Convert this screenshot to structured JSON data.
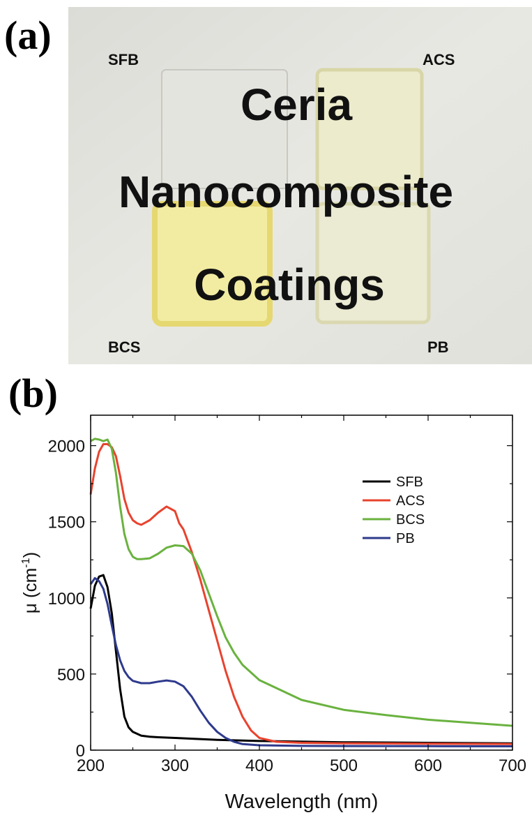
{
  "panel_a": {
    "label": "(a)",
    "sample_labels": {
      "top_left": "SFB",
      "top_right": "ACS",
      "bottom_left": "BCS",
      "bottom_right": "PB"
    },
    "background_text": [
      "Ceria",
      "Nanocomposite",
      "Coatings"
    ]
  },
  "panel_b": {
    "label": "(b)"
  },
  "chart_data": {
    "type": "line",
    "xlabel": "Wavelength (nm)",
    "ylabel": "μ (cm",
    "ylabel_sup": "-1",
    "ylabel_close": ")",
    "xlim": [
      200,
      700
    ],
    "ylim": [
      0,
      2200
    ],
    "xticks": [
      200,
      300,
      400,
      500,
      600,
      700
    ],
    "yticks": [
      0,
      500,
      1000,
      1500,
      2000
    ],
    "legend_position": "top-right",
    "series": [
      {
        "name": "SFB",
        "color": "#000000",
        "x": [
          200,
          205,
          210,
          215,
          220,
          225,
          230,
          235,
          240,
          245,
          250,
          260,
          270,
          280,
          300,
          350,
          400,
          500,
          600,
          700
        ],
        "y": [
          930,
          1080,
          1140,
          1150,
          1070,
          900,
          650,
          400,
          220,
          150,
          120,
          95,
          88,
          85,
          80,
          68,
          60,
          52,
          48,
          45
        ]
      },
      {
        "name": "ACS",
        "color": "#e8432e",
        "x": [
          200,
          205,
          210,
          215,
          220,
          225,
          230,
          235,
          240,
          245,
          250,
          255,
          260,
          270,
          280,
          290,
          300,
          305,
          310,
          320,
          330,
          340,
          350,
          360,
          370,
          380,
          390,
          400,
          420,
          450,
          500,
          600,
          700
        ],
        "y": [
          1680,
          1850,
          1960,
          2010,
          2010,
          1990,
          1930,
          1800,
          1650,
          1560,
          1510,
          1490,
          1480,
          1510,
          1560,
          1600,
          1570,
          1490,
          1450,
          1300,
          1120,
          920,
          720,
          520,
          350,
          220,
          130,
          80,
          55,
          48,
          45,
          42,
          40
        ]
      },
      {
        "name": "BCS",
        "color": "#6ab23f",
        "x": [
          200,
          205,
          210,
          215,
          220,
          225,
          230,
          235,
          240,
          245,
          250,
          255,
          260,
          270,
          280,
          290,
          300,
          310,
          320,
          330,
          340,
          350,
          360,
          370,
          380,
          400,
          450,
          500,
          550,
          600,
          650,
          700
        ],
        "y": [
          2030,
          2045,
          2040,
          2030,
          2040,
          1980,
          1820,
          1600,
          1420,
          1320,
          1270,
          1255,
          1255,
          1260,
          1290,
          1330,
          1345,
          1340,
          1290,
          1180,
          1030,
          880,
          740,
          640,
          560,
          460,
          330,
          265,
          230,
          200,
          180,
          160
        ]
      },
      {
        "name": "PB",
        "color": "#2e3a8c",
        "x": [
          200,
          205,
          210,
          215,
          220,
          225,
          230,
          235,
          240,
          245,
          250,
          260,
          270,
          280,
          290,
          300,
          310,
          320,
          330,
          340,
          350,
          360,
          370,
          380,
          400,
          450,
          500,
          600,
          700
        ],
        "y": [
          1090,
          1130,
          1110,
          1060,
          960,
          820,
          690,
          590,
          520,
          480,
          455,
          440,
          440,
          450,
          458,
          450,
          420,
          350,
          260,
          180,
          120,
          80,
          55,
          40,
          32,
          28,
          27,
          26,
          25
        ]
      }
    ]
  }
}
